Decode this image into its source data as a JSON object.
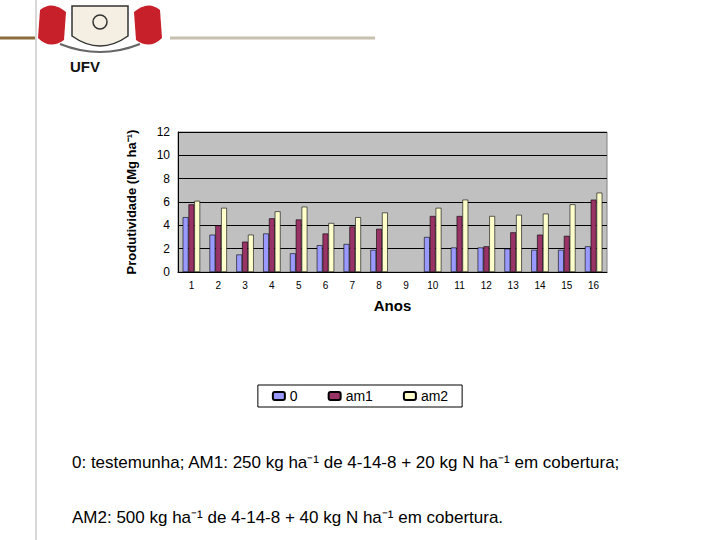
{
  "header": {
    "logo_text": "UFV"
  },
  "chart_data": {
    "type": "bar",
    "xlabel": "Anos",
    "ylabel": "Produtividade (Mg ha⁻¹)",
    "categories": [
      "1",
      "2",
      "3",
      "4",
      "5",
      "6",
      "7",
      "8",
      "9",
      "10",
      "11",
      "12",
      "13",
      "14",
      "15",
      "16"
    ],
    "series": [
      {
        "name": "0",
        "color": "#9999ff",
        "values": [
          4.7,
          3.2,
          1.5,
          3.3,
          1.6,
          2.3,
          2.4,
          1.9,
          null,
          3.0,
          2.1,
          2.1,
          2.0,
          1.9,
          1.9,
          2.2
        ]
      },
      {
        "name": "am1",
        "color": "#993366",
        "values": [
          5.8,
          4.0,
          2.6,
          4.6,
          4.5,
          3.3,
          3.9,
          3.7,
          null,
          4.8,
          4.8,
          2.2,
          3.4,
          3.2,
          3.1,
          6.2
        ]
      },
      {
        "name": "am2",
        "color": "#ffffcc",
        "values": [
          6.1,
          5.5,
          3.2,
          5.2,
          5.6,
          4.2,
          4.7,
          5.1,
          null,
          5.5,
          6.2,
          4.8,
          4.9,
          5.0,
          5.8,
          6.8
        ]
      }
    ],
    "ylim": [
      0,
      12
    ],
    "yticks": [
      0,
      2,
      4,
      6,
      8,
      10,
      12
    ],
    "grid": true,
    "legend": "bottom"
  },
  "caption": [
    "0: testemunha; AM1: 250 kg ha⁻¹ de 4-14-8 + 20 kg N ha⁻¹ em cobertura;",
    "AM2: 500 kg ha⁻¹ de 4-14-8 + 40 kg N ha⁻¹ em cobertura."
  ]
}
